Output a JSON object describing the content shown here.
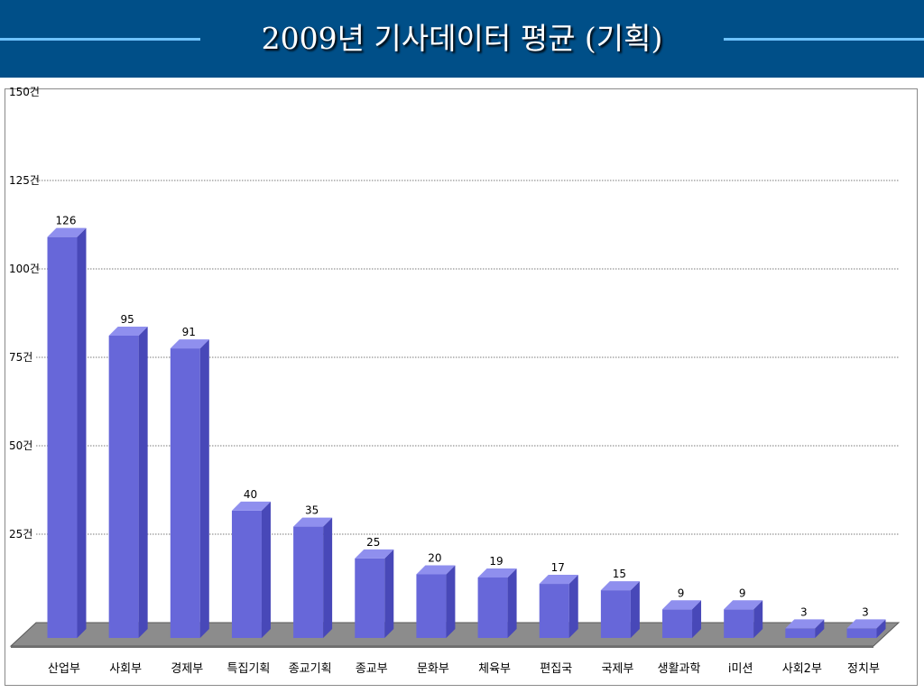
{
  "header": {
    "title": "2009년 기사데이터 평균 (기획)"
  },
  "colors": {
    "header_bg": "#004f88",
    "header_line": "#6fc3ff",
    "bar_front": "#6767d9",
    "bar_side": "#4848b8",
    "bar_top": "#8f8fee",
    "floor": "#8c8c8c"
  },
  "chart_data": {
    "type": "bar",
    "title": "2009년 기사데이터 평균 (기획)",
    "categories": [
      "산업부",
      "사회부",
      "경제부",
      "특집기획",
      "종교기획",
      "종교부",
      "문화부",
      "체육부",
      "편집국",
      "국제부",
      "생활과학",
      "i미션",
      "사회2부",
      "정치부"
    ],
    "values": [
      126,
      95,
      91,
      40,
      35,
      25,
      20,
      19,
      17,
      15,
      9,
      9,
      3,
      3
    ],
    "y_ticks": [
      "25건",
      "50건",
      "75건",
      "100건",
      "125건",
      "150건"
    ],
    "ylim": [
      0,
      150
    ],
    "grid": true,
    "legend": "none",
    "style": "3d-column"
  }
}
